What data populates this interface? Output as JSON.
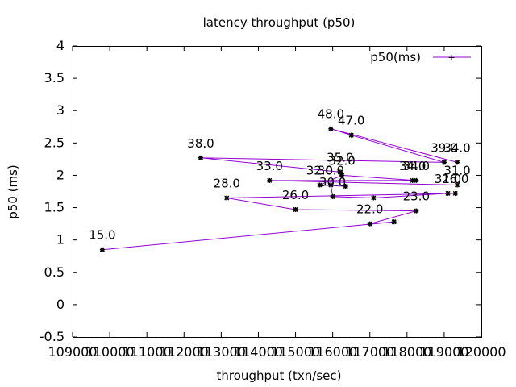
{
  "chart_data": {
    "type": "line",
    "title": "latency throughput (p50)",
    "xlabel": "throughput (txn/sec)",
    "ylabel": "p50 (ms)",
    "xlim": [
      109000,
      120000
    ],
    "ylim": [
      -0.5,
      4
    ],
    "xticks": [
      109000,
      110000,
      111000,
      112000,
      113000,
      114000,
      115000,
      116000,
      117000,
      118000,
      119000,
      120000
    ],
    "yticks": [
      -0.5,
      0,
      0.5,
      1,
      1.5,
      2,
      2.5,
      3,
      3.5,
      4
    ],
    "xtick_labels": [
      "109000",
      "110000",
      "111000",
      "112000",
      "113000",
      "114000",
      "115000",
      "116000",
      "117000",
      "118000",
      "119000",
      "120000"
    ],
    "ytick_labels": [
      "-0.5",
      "0",
      "0.5",
      "1",
      "1.5",
      "2",
      "2.5",
      "3",
      "3.5",
      "4"
    ],
    "grid": false,
    "legend_position": "top-right",
    "series": [
      {
        "name": "p50(ms)",
        "color": "#9400d3",
        "points": [
          {
            "x": 109800,
            "y": 0.85,
            "label": "15.0"
          },
          {
            "x": 117650,
            "y": 1.28,
            "label": ""
          },
          {
            "x": 117000,
            "y": 1.25,
            "label": "22.0"
          },
          {
            "x": 118250,
            "y": 1.45,
            "label": "23.0"
          },
          {
            "x": 115000,
            "y": 1.47,
            "label": "26.0"
          },
          {
            "x": 113150,
            "y": 1.65,
            "label": "28.0"
          },
          {
            "x": 119300,
            "y": 1.72,
            "label": "26.0"
          },
          {
            "x": 119100,
            "y": 1.72,
            "label": "31.0"
          },
          {
            "x": 117100,
            "y": 1.65,
            "label": ""
          },
          {
            "x": 116000,
            "y": 1.67,
            "label": "30.0"
          },
          {
            "x": 115950,
            "y": 1.85,
            "label": "30.0"
          },
          {
            "x": 119350,
            "y": 1.85,
            "label": "31.0"
          },
          {
            "x": 114300,
            "y": 1.92,
            "label": "33.0"
          },
          {
            "x": 118150,
            "y": 1.92,
            "label": "34.0"
          },
          {
            "x": 118250,
            "y": 1.92,
            "label": "34.0"
          },
          {
            "x": 116250,
            "y": 2.0,
            "label": "32.0"
          },
          {
            "x": 115650,
            "y": 1.85,
            "label": "32.0"
          },
          {
            "x": 116350,
            "y": 1.83,
            "label": ""
          },
          {
            "x": 116200,
            "y": 2.05,
            "label": "35.0"
          },
          {
            "x": 112450,
            "y": 2.27,
            "label": "38.0"
          },
          {
            "x": 119000,
            "y": 2.2,
            "label": "39.0"
          },
          {
            "x": 116500,
            "y": 2.62,
            "label": "47.0"
          },
          {
            "x": 115950,
            "y": 2.72,
            "label": "48.0"
          },
          {
            "x": 119350,
            "y": 2.2,
            "label": "34.0"
          }
        ]
      }
    ]
  }
}
